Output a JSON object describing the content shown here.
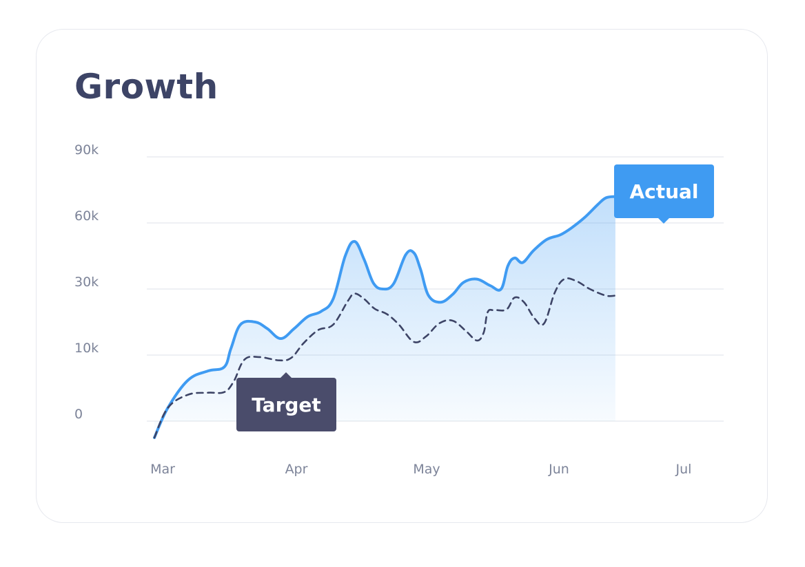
{
  "card": {
    "title": "Growth"
  },
  "chart_data": {
    "type": "area",
    "title": "Growth",
    "xlabel": "",
    "ylabel": "",
    "x_ticks": [
      "Mar",
      "Apr",
      "May",
      "Jun",
      "Jul"
    ],
    "y_ticks": [
      "0",
      "10k",
      "30k",
      "60k",
      "90k"
    ],
    "grid": true,
    "legend": "none",
    "series": [
      {
        "name": "Actual",
        "style": "solid-area",
        "color": "#3f9bf2",
        "points": [
          {
            "x": 0.0,
            "level": -0.25
          },
          {
            "x": 0.1,
            "level": 0.2
          },
          {
            "x": 0.25,
            "level": 0.62
          },
          {
            "x": 0.4,
            "level": 0.76
          },
          {
            "x": 0.52,
            "level": 0.82
          },
          {
            "x": 0.57,
            "level": 1.1
          },
          {
            "x": 0.64,
            "level": 1.46
          },
          {
            "x": 0.75,
            "level": 1.5
          },
          {
            "x": 0.84,
            "level": 1.4
          },
          {
            "x": 0.94,
            "level": 1.25
          },
          {
            "x": 1.04,
            "level": 1.4
          },
          {
            "x": 1.14,
            "level": 1.58
          },
          {
            "x": 1.24,
            "level": 1.66
          },
          {
            "x": 1.33,
            "level": 1.85
          },
          {
            "x": 1.42,
            "level": 2.5
          },
          {
            "x": 1.49,
            "level": 2.72
          },
          {
            "x": 1.56,
            "level": 2.45
          },
          {
            "x": 1.63,
            "level": 2.09
          },
          {
            "x": 1.7,
            "level": 2.0
          },
          {
            "x": 1.78,
            "level": 2.08
          },
          {
            "x": 1.87,
            "level": 2.52
          },
          {
            "x": 1.93,
            "level": 2.55
          },
          {
            "x": 1.98,
            "level": 2.3
          },
          {
            "x": 2.04,
            "level": 1.9
          },
          {
            "x": 2.13,
            "level": 1.8
          },
          {
            "x": 2.22,
            "level": 1.92
          },
          {
            "x": 2.3,
            "level": 2.1
          },
          {
            "x": 2.4,
            "level": 2.15
          },
          {
            "x": 2.5,
            "level": 2.05
          },
          {
            "x": 2.58,
            "level": 2.0
          },
          {
            "x": 2.63,
            "level": 2.35
          },
          {
            "x": 2.68,
            "level": 2.47
          },
          {
            "x": 2.74,
            "level": 2.4
          },
          {
            "x": 2.82,
            "level": 2.58
          },
          {
            "x": 2.92,
            "level": 2.75
          },
          {
            "x": 3.02,
            "level": 2.82
          },
          {
            "x": 3.1,
            "level": 2.92
          },
          {
            "x": 3.2,
            "level": 3.08
          },
          {
            "x": 3.3,
            "level": 3.28
          },
          {
            "x": 3.36,
            "level": 3.38
          },
          {
            "x": 3.43,
            "level": 3.4
          }
        ]
      },
      {
        "name": "Target",
        "style": "dashed",
        "color": "#3d4466",
        "points": [
          {
            "x": 0.0,
            "level": -0.25
          },
          {
            "x": 0.1,
            "level": 0.2
          },
          {
            "x": 0.25,
            "level": 0.4
          },
          {
            "x": 0.4,
            "level": 0.43
          },
          {
            "x": 0.52,
            "level": 0.44
          },
          {
            "x": 0.59,
            "level": 0.6
          },
          {
            "x": 0.67,
            "level": 0.93
          },
          {
            "x": 0.78,
            "level": 0.97
          },
          {
            "x": 0.93,
            "level": 0.92
          },
          {
            "x": 1.02,
            "level": 0.96
          },
          {
            "x": 1.11,
            "level": 1.18
          },
          {
            "x": 1.22,
            "level": 1.38
          },
          {
            "x": 1.33,
            "level": 1.46
          },
          {
            "x": 1.44,
            "level": 1.82
          },
          {
            "x": 1.49,
            "level": 1.93
          },
          {
            "x": 1.56,
            "level": 1.85
          },
          {
            "x": 1.64,
            "level": 1.7
          },
          {
            "x": 1.73,
            "level": 1.62
          },
          {
            "x": 1.82,
            "level": 1.46
          },
          {
            "x": 1.93,
            "level": 1.2
          },
          {
            "x": 2.02,
            "level": 1.28
          },
          {
            "x": 2.12,
            "level": 1.48
          },
          {
            "x": 2.22,
            "level": 1.52
          },
          {
            "x": 2.32,
            "level": 1.36
          },
          {
            "x": 2.4,
            "level": 1.22
          },
          {
            "x": 2.45,
            "level": 1.34
          },
          {
            "x": 2.48,
            "level": 1.65
          },
          {
            "x": 2.53,
            "level": 1.68
          },
          {
            "x": 2.62,
            "level": 1.69
          },
          {
            "x": 2.68,
            "level": 1.87
          },
          {
            "x": 2.75,
            "level": 1.8
          },
          {
            "x": 2.83,
            "level": 1.55
          },
          {
            "x": 2.9,
            "level": 1.48
          },
          {
            "x": 2.98,
            "level": 1.95
          },
          {
            "x": 3.05,
            "level": 2.15
          },
          {
            "x": 3.14,
            "level": 2.12
          },
          {
            "x": 3.24,
            "level": 2.0
          },
          {
            "x": 3.36,
            "level": 1.9
          },
          {
            "x": 3.43,
            "level": 1.9
          }
        ]
      }
    ],
    "annotations": [
      {
        "text": "Actual",
        "series": "Actual",
        "color": "#3f9bf2",
        "pointer": "down"
      },
      {
        "text": "Target",
        "series": "Target",
        "color": "#4a4c6b",
        "pointer": "up"
      }
    ]
  }
}
